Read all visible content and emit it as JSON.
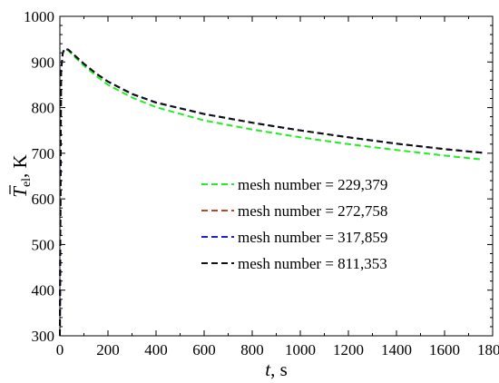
{
  "chart_data": {
    "type": "line",
    "title": "",
    "xlabel": {
      "var": "t",
      "unit": ", s"
    },
    "ylabel": {
      "var": "T",
      "sub": "el",
      "unit": ", K"
    },
    "xlim": [
      0,
      1800
    ],
    "ylim": [
      300,
      1000
    ],
    "xticks": [
      0,
      200,
      400,
      600,
      800,
      1000,
      1200,
      1400,
      1600,
      1800
    ],
    "yticks": [
      300,
      400,
      500,
      600,
      700,
      800,
      900,
      1000
    ],
    "xtick_labels": [
      "0",
      "200",
      "400",
      "600",
      "800",
      "1000",
      "1200",
      "1400",
      "1600",
      "1800"
    ],
    "ytick_labels": [
      "300",
      "400",
      "500",
      "600",
      "700",
      "800",
      "900",
      "1000"
    ],
    "grid": false,
    "legend_position": "center-right",
    "series": [
      {
        "name": "mesh number = 229,379",
        "color": "#22ee22",
        "x": [
          0,
          5,
          12,
          20,
          35,
          60,
          100,
          150,
          200,
          300,
          400,
          600,
          800,
          1000,
          1200,
          1400,
          1600,
          1760
        ],
        "y": [
          300,
          880,
          920,
          928,
          925,
          912,
          892,
          870,
          850,
          822,
          801,
          772,
          752,
          735,
          720,
          707,
          695,
          686
        ]
      },
      {
        "name": "mesh number = 272,758",
        "color": "#b5482a",
        "x": [
          0,
          5,
          12,
          20,
          35,
          60,
          100,
          150,
          200,
          300,
          400,
          600,
          800,
          1000,
          1200,
          1400,
          1600,
          1760
        ],
        "y": [
          300,
          880,
          920,
          929,
          927,
          915,
          896,
          875,
          857,
          830,
          811,
          786,
          767,
          750,
          735,
          721,
          709,
          701
        ]
      },
      {
        "name": "mesh number = 317,859",
        "color": "#1f1fd8",
        "x": [
          0,
          5,
          12,
          20,
          35,
          60,
          100,
          150,
          200,
          300,
          400,
          600,
          800,
          1000,
          1200,
          1400,
          1600,
          1760
        ],
        "y": [
          300,
          880,
          920,
          929,
          927,
          915,
          896,
          875,
          857,
          830,
          811,
          786,
          767,
          750,
          735,
          721,
          709,
          701
        ]
      },
      {
        "name": "mesh number = 811,353",
        "color": "#111111",
        "x": [
          0,
          5,
          12,
          20,
          35,
          60,
          100,
          150,
          200,
          300,
          400,
          600,
          800,
          1000,
          1200,
          1400,
          1600,
          1760
        ],
        "y": [
          300,
          880,
          920,
          929,
          927,
          915,
          896,
          875,
          857,
          830,
          811,
          786,
          767,
          750,
          735,
          721,
          709,
          701
        ]
      }
    ]
  }
}
